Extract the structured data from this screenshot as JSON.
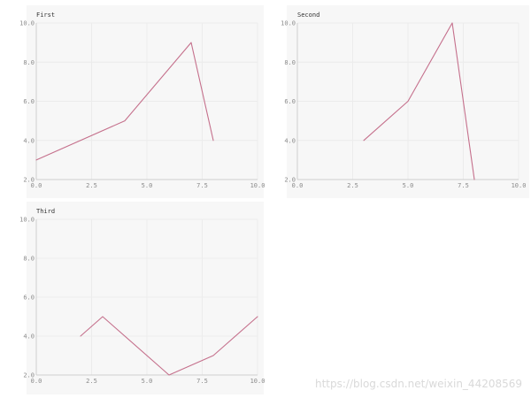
{
  "colors": {
    "background": "#f7f7f7",
    "series": "#c5708c"
  },
  "chart_data": [
    {
      "type": "line",
      "title": "First",
      "xlim": [
        0,
        10
      ],
      "ylim": [
        2,
        10
      ],
      "xticks": [
        "0.0",
        "2.5",
        "5.0",
        "7.5",
        "10.0"
      ],
      "yticks": [
        "2.0",
        "4.0",
        "6.0",
        "8.0",
        "10.0"
      ],
      "grid": true,
      "x": [
        0,
        4,
        7,
        8
      ],
      "y": [
        3,
        5,
        9,
        4
      ]
    },
    {
      "type": "line",
      "title": "Second",
      "xlim": [
        0,
        10
      ],
      "ylim": [
        2,
        10
      ],
      "xticks": [
        "0.0",
        "2.5",
        "5.0",
        "7.5",
        "10.0"
      ],
      "yticks": [
        "2.0",
        "4.0",
        "6.0",
        "8.0",
        "10.0"
      ],
      "grid": true,
      "x": [
        3,
        5,
        7,
        8
      ],
      "y": [
        4,
        6,
        10,
        2
      ]
    },
    {
      "type": "line",
      "title": "Third",
      "xlim": [
        0,
        10
      ],
      "ylim": [
        2,
        10
      ],
      "xticks": [
        "0.0",
        "2.5",
        "5.0",
        "7.5",
        "10.0"
      ],
      "yticks": [
        "2.0",
        "4.0",
        "6.0",
        "8.0",
        "10.0"
      ],
      "grid": true,
      "x": [
        2,
        3,
        6,
        8,
        10
      ],
      "y": [
        4,
        5,
        2,
        3,
        5
      ]
    }
  ],
  "watermark": "https://blog.csdn.net/weixin_44208569"
}
